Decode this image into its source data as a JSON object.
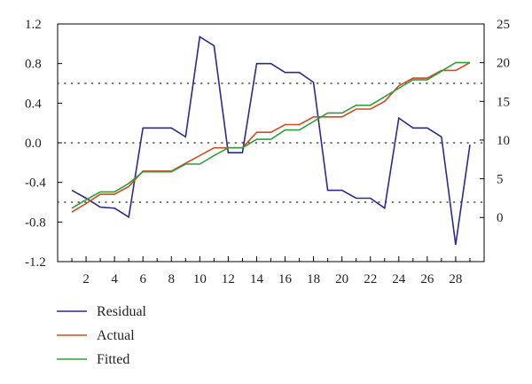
{
  "chart_data": {
    "type": "line",
    "title": "",
    "xlabel": "",
    "ylabel": "",
    "x": [
      1,
      2,
      3,
      4,
      5,
      6,
      7,
      8,
      9,
      10,
      11,
      12,
      13,
      14,
      15,
      16,
      17,
      18,
      19,
      20,
      21,
      22,
      23,
      24,
      25,
      26,
      27,
      28,
      29
    ],
    "x_ticks": [
      2,
      4,
      6,
      8,
      10,
      12,
      14,
      16,
      18,
      20,
      22,
      24,
      26,
      28
    ],
    "x_tick_labels": [
      "2",
      "4",
      "6",
      "8",
      "10",
      "12",
      "14",
      "16",
      "18",
      "20",
      "22",
      "24",
      "26",
      "28"
    ],
    "xlim": [
      0,
      30
    ],
    "left_axis": {
      "ylim": [
        -1.2,
        1.2
      ],
      "ticks": [
        -1.2,
        -0.8,
        -0.4,
        0.0,
        0.4,
        0.8,
        1.2
      ],
      "tick_labels": [
        "-1.2",
        "-0.8",
        "-0.4",
        "0.0",
        "0.4",
        "0.8",
        "1.2"
      ]
    },
    "right_axis": {
      "ylim": [
        -5.7,
        25
      ],
      "ticks": [
        0,
        5,
        10,
        15,
        20,
        25
      ],
      "tick_labels": [
        "0",
        "5",
        "10",
        "15",
        "20",
        "25"
      ]
    },
    "reference_lines": [
      0.6,
      0.0,
      -0.6
    ],
    "series": [
      {
        "name": "Residual",
        "axis": "left",
        "color": "#2b2b8c",
        "values": [
          -0.48,
          -0.56,
          -0.65,
          -0.66,
          -0.75,
          0.15,
          0.15,
          0.15,
          0.06,
          1.07,
          0.98,
          -0.1,
          -0.1,
          0.8,
          0.8,
          0.71,
          0.71,
          0.61,
          -0.48,
          -0.48,
          -0.56,
          -0.56,
          -0.66,
          0.25,
          0.15,
          0.15,
          0.06,
          -1.03,
          -0.02
        ]
      },
      {
        "name": "Actual",
        "axis": "right",
        "color": "#d24a1e",
        "values": [
          0.7,
          1.8,
          3,
          3,
          4,
          6,
          6,
          6,
          7,
          8,
          9,
          9,
          9,
          11,
          11,
          12,
          12,
          13,
          13,
          13,
          14,
          14,
          15,
          17,
          18,
          18,
          19,
          19,
          20
        ]
      },
      {
        "name": "Fitted",
        "axis": "right",
        "color": "#2e9e3a",
        "values": [
          1.2,
          2.3,
          3.3,
          3.3,
          4.4,
          5.9,
          5.9,
          5.9,
          6.9,
          6.9,
          8.0,
          9.0,
          9.0,
          10.1,
          10.1,
          11.3,
          11.3,
          12.4,
          13.5,
          13.5,
          14.5,
          14.5,
          15.6,
          16.7,
          17.8,
          17.8,
          18.9,
          20.0,
          20.0
        ]
      }
    ],
    "legend": {
      "position": "bottom-left",
      "entries": [
        "Residual",
        "Actual",
        "Fitted"
      ]
    }
  }
}
